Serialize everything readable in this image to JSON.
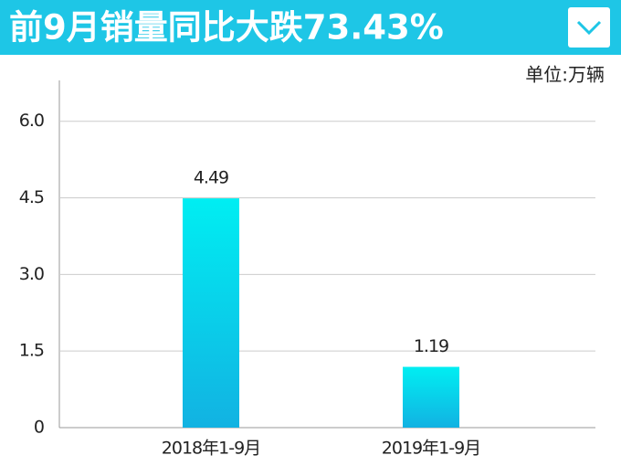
{
  "chart_data": {
    "type": "bar",
    "title": "前9月销量同比大跌73.43%",
    "ylabel": "单位:万辆",
    "categories": [
      "2018年1-9月",
      "2019年1-9月"
    ],
    "values": [
      4.49,
      1.19
    ],
    "color": [
      "#00eef2",
      "#12b2e2"
    ],
    "ylim": [
      0,
      6.8
    ],
    "yticks": [
      0,
      1.5,
      {
        "value": 3,
        "label": "3.0"
      },
      4.5,
      {
        "value": 6,
        "label": "6.0"
      }
    ],
    "grid": true
  }
}
